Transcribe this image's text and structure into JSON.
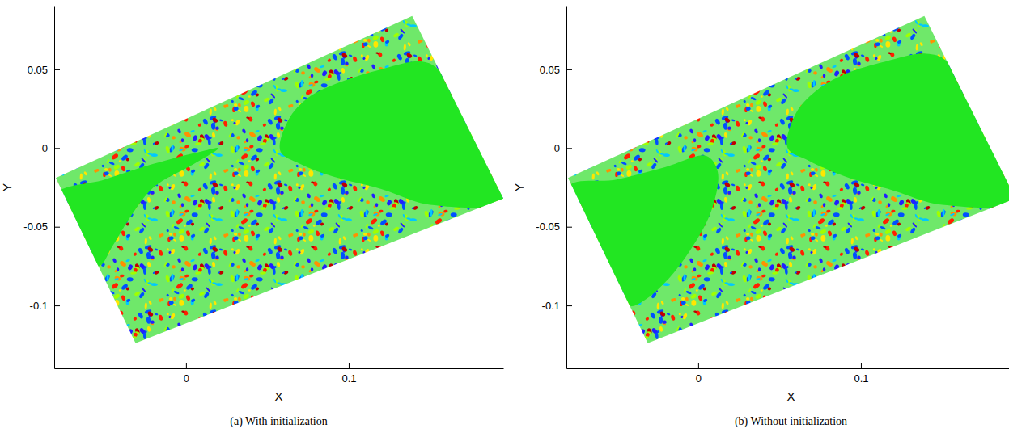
{
  "chart_data": [
    {
      "type": "field",
      "title": "(a) With initialization",
      "x_label": "X",
      "y_label": "Y",
      "xlim": [
        -0.081,
        0.195
      ],
      "ylim": [
        -0.14,
        0.09
      ],
      "xticks": [
        0,
        0.1
      ],
      "yticks": [
        -0.1,
        -0.05,
        0,
        0.05
      ],
      "domain": {
        "x": [
          -0.08,
          0.139,
          0.195,
          -0.031
        ],
        "y": [
          -0.019,
          0.084,
          -0.032,
          -0.124
        ]
      },
      "regions": [
        {
          "x": [
            0.058,
            0.063,
            0.075,
            0.095,
            0.12,
            0.145,
            0.156,
            0.195,
            0.15,
            0.12,
            0.09,
            0.07
          ],
          "y": [
            -0.002,
            0.018,
            0.032,
            0.042,
            0.05,
            0.055,
            0.049,
            -0.032,
            -0.036,
            -0.026,
            -0.018,
            -0.01
          ]
        },
        {
          "x": [
            -0.08,
            -0.05,
            -0.02,
            0.01,
            0.02,
            0.005,
            -0.02,
            -0.035,
            -0.045,
            -0.054
          ],
          "y": [
            -0.03,
            -0.02,
            -0.01,
            -0.002,
            0.0,
            -0.01,
            -0.025,
            -0.045,
            -0.062,
            -0.075
          ]
        }
      ]
    },
    {
      "type": "field",
      "title": "(b) Without initialization",
      "x_label": "X",
      "y_label": "Y",
      "xlim": [
        -0.081,
        0.195
      ],
      "ylim": [
        -0.14,
        0.09
      ],
      "xticks": [
        0,
        0.1
      ],
      "yticks": [
        -0.1,
        -0.05,
        0,
        0.05
      ],
      "domain": {
        "x": [
          -0.08,
          0.139,
          0.195,
          -0.031
        ],
        "y": [
          -0.019,
          0.084,
          -0.032,
          -0.124
        ]
      },
      "regions": [
        {
          "x": [
            0.055,
            0.06,
            0.072,
            0.09,
            0.115,
            0.14,
            0.153,
            0.195,
            0.15,
            0.12,
            0.09,
            0.068
          ],
          "y": [
            0.0,
            0.022,
            0.036,
            0.047,
            0.055,
            0.06,
            0.055,
            -0.032,
            -0.036,
            -0.027,
            -0.018,
            -0.008
          ]
        },
        {
          "x": [
            -0.08,
            -0.05,
            -0.02,
            0.005,
            0.012,
            0.008,
            -0.005,
            -0.02,
            -0.035,
            -0.043
          ],
          "y": [
            -0.025,
            -0.02,
            -0.012,
            -0.005,
            -0.015,
            -0.04,
            -0.065,
            -0.085,
            -0.098,
            -0.1
          ]
        }
      ]
    }
  ]
}
